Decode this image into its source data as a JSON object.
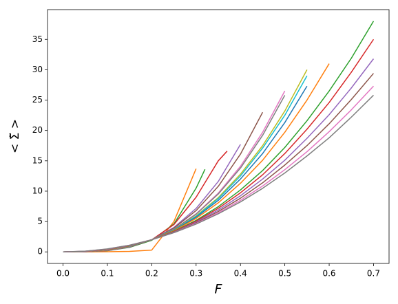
{
  "chart_data": {
    "type": "line",
    "xlabel": "F",
    "ylabel": "< Σ̃ >",
    "xlim": [
      -0.035,
      0.735
    ],
    "ylim": [
      -1.9,
      39.9
    ],
    "xticks": [
      {
        "value": 0,
        "label": "0.0"
      },
      0.1,
      0.2,
      0.3,
      0.4,
      0.5,
      0.6,
      0.7
    ],
    "yticks": [
      0,
      5,
      10,
      15,
      20,
      25,
      30,
      35
    ],
    "grid": false,
    "series": [
      {
        "color": "#ff7f0e",
        "x": [
          0,
          0.05,
          0.1,
          0.15,
          0.2,
          0.25,
          0.3
        ],
        "values": [
          0,
          0,
          0.02,
          0.08,
          0.3,
          5.0,
          13.7
        ]
      },
      {
        "color": "#2ca02c",
        "x": [
          0,
          0.05,
          0.1,
          0.15,
          0.2,
          0.25,
          0.3,
          0.32
        ],
        "values": [
          0,
          0.03,
          0.2,
          0.75,
          1.9,
          4.6,
          10.5,
          13.6
        ]
      },
      {
        "color": "#d62728",
        "x": [
          0,
          0.05,
          0.1,
          0.15,
          0.2,
          0.25,
          0.3,
          0.35,
          0.37
        ],
        "values": [
          0,
          0.03,
          0.22,
          0.8,
          2.0,
          4.5,
          9.0,
          15.0,
          16.6
        ]
      },
      {
        "color": "#9467bd",
        "x": [
          0,
          0.05,
          0.1,
          0.15,
          0.2,
          0.25,
          0.3,
          0.35,
          0.4
        ],
        "values": [
          0,
          0.03,
          0.23,
          0.81,
          2.0,
          4.03,
          7.15,
          11.6,
          17.7
        ]
      },
      {
        "color": "#8c564b",
        "x": [
          0,
          0.05,
          0.1,
          0.15,
          0.2,
          0.25,
          0.3,
          0.35,
          0.4,
          0.45
        ],
        "values": [
          0,
          0.03,
          0.25,
          0.84,
          2.0,
          3.92,
          6.8,
          10.8,
          16.1,
          23
        ]
      },
      {
        "color": "#e377c2",
        "x": [
          0,
          0.05,
          0.1,
          0.15,
          0.2,
          0.25,
          0.3,
          0.35,
          0.4,
          0.45,
          0.5
        ],
        "values": [
          0,
          0.04,
          0.28,
          0.89,
          2.0,
          3.75,
          6.27,
          9.68,
          14.1,
          19.7,
          26.5
        ]
      },
      {
        "color": "#7f7f7f",
        "x": [
          0,
          0.05,
          0.1,
          0.15,
          0.2,
          0.25,
          0.3,
          0.35,
          0.4,
          0.45,
          0.5
        ],
        "values": [
          0,
          0.04,
          0.29,
          0.9,
          2.0,
          3.73,
          6.2,
          9.53,
          13.8,
          19.2,
          25.8
        ]
      },
      {
        "color": "#bcbd22",
        "x": [
          0,
          0.05,
          0.1,
          0.15,
          0.2,
          0.25,
          0.3,
          0.35,
          0.4,
          0.45,
          0.5,
          0.55
        ],
        "values": [
          0,
          0.05,
          0.31,
          0.93,
          2.0,
          3.64,
          5.93,
          8.94,
          12.8,
          17.5,
          23.2,
          30
        ]
      },
      {
        "color": "#17becf",
        "x": [
          0,
          0.05,
          0.1,
          0.15,
          0.2,
          0.25,
          0.3,
          0.35,
          0.4,
          0.45,
          0.5,
          0.55
        ],
        "values": [
          0,
          0.05,
          0.32,
          0.93,
          2.0,
          3.61,
          5.84,
          8.78,
          12.5,
          17.1,
          22.5,
          29
        ]
      },
      {
        "color": "#1f77b4",
        "x": [
          0,
          0.05,
          0.1,
          0.15,
          0.2,
          0.25,
          0.3,
          0.35,
          0.4,
          0.45,
          0.5,
          0.55
        ],
        "values": [
          0,
          0.06,
          0.34,
          0.96,
          2.0,
          3.56,
          5.7,
          8.49,
          12.0,
          16.2,
          21.3,
          27.3
        ]
      },
      {
        "color": "#ff7f0e",
        "x": [
          0,
          0.05,
          0.1,
          0.15,
          0.2,
          0.25,
          0.3,
          0.35,
          0.4,
          0.45,
          0.5,
          0.55,
          0.6
        ],
        "values": [
          0,
          0.06,
          0.35,
          0.98,
          2.0,
          3.49,
          5.5,
          8.08,
          11.3,
          15.1,
          19.7,
          25.0,
          31
        ]
      },
      {
        "color": "#2ca02c",
        "x": [
          0,
          0.05,
          0.1,
          0.15,
          0.2,
          0.25,
          0.3,
          0.35,
          0.4,
          0.45,
          0.5,
          0.55,
          0.6,
          0.65,
          0.7
        ],
        "values": [
          0,
          0.08,
          0.39,
          1.02,
          2.0,
          3.37,
          5.19,
          7.45,
          10.2,
          13.4,
          17.2,
          21.6,
          26.5,
          31.9,
          38
        ]
      },
      {
        "color": "#d62728",
        "x": [
          0,
          0.05,
          0.1,
          0.15,
          0.2,
          0.25,
          0.3,
          0.35,
          0.4,
          0.45,
          0.5,
          0.55,
          0.6,
          0.65,
          0.7
        ],
        "values": [
          0,
          0.08,
          0.41,
          1.04,
          2.0,
          3.33,
          5.05,
          7.18,
          9.73,
          12.7,
          16.2,
          20.2,
          24.6,
          29.6,
          35
        ]
      },
      {
        "color": "#9467bd",
        "x": [
          0,
          0.05,
          0.1,
          0.15,
          0.2,
          0.25,
          0.3,
          0.35,
          0.4,
          0.45,
          0.5,
          0.55,
          0.6,
          0.65,
          0.7
        ],
        "values": [
          0,
          0.09,
          0.43,
          1.06,
          2.0,
          3.28,
          4.91,
          6.89,
          9.24,
          12.0,
          15.1,
          18.7,
          22.6,
          27.0,
          31.8
        ]
      },
      {
        "color": "#8c564b",
        "x": [
          0,
          0.05,
          0.1,
          0.15,
          0.2,
          0.25,
          0.3,
          0.35,
          0.4,
          0.45,
          0.5,
          0.55,
          0.6,
          0.65,
          0.7
        ],
        "values": [
          0,
          0.1,
          0.45,
          1.08,
          2.0,
          3.23,
          4.77,
          6.65,
          8.84,
          11.38,
          14.3,
          17.5,
          21.1,
          25.1,
          29.4
        ]
      },
      {
        "color": "#e377c2",
        "x": [
          0,
          0.05,
          0.1,
          0.15,
          0.2,
          0.25,
          0.3,
          0.35,
          0.4,
          0.45,
          0.5,
          0.55,
          0.6,
          0.65,
          0.7
        ],
        "values": [
          0,
          0.11,
          0.47,
          1.1,
          2.0,
          3.18,
          4.67,
          6.43,
          8.49,
          10.86,
          13.54,
          16.5,
          19.8,
          23.4,
          27.3
        ]
      },
      {
        "color": "#7f7f7f",
        "x": [
          0,
          0.05,
          0.1,
          0.15,
          0.2,
          0.25,
          0.3,
          0.35,
          0.4,
          0.45,
          0.5,
          0.55,
          0.6,
          0.65,
          0.7
        ],
        "values": [
          0,
          0.12,
          0.49,
          1.11,
          2.0,
          3.16,
          4.58,
          6.27,
          8.23,
          10.47,
          13.0,
          15.8,
          18.8,
          22.2,
          25.8
        ]
      }
    ]
  }
}
